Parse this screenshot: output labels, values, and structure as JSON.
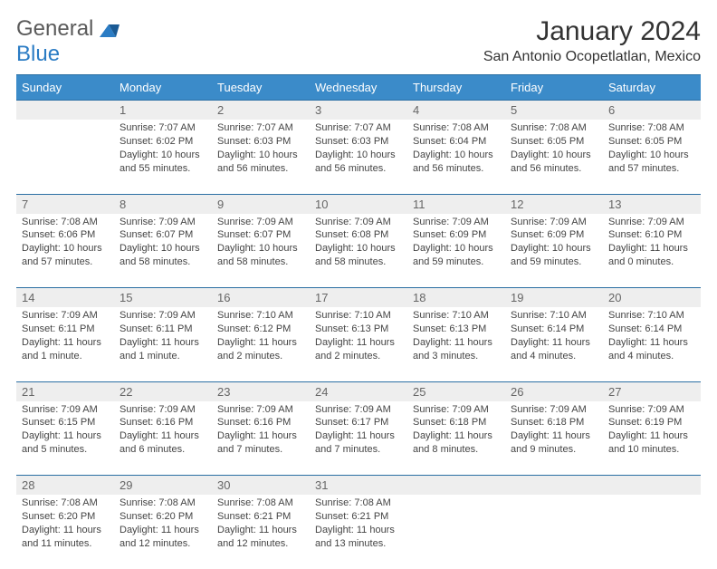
{
  "logo": {
    "word1": "General",
    "word2": "Blue"
  },
  "title": "January 2024",
  "location": "San Antonio Ocopetlatlan, Mexico",
  "colors": {
    "header_bg": "#3b8bc9",
    "header_border": "#2b6fa3",
    "daynum_bg": "#eeeeee",
    "daynum_text": "#666666",
    "body_text": "#444444",
    "logo_gray": "#5a5a5a",
    "logo_blue": "#2b7cc4"
  },
  "weekdays": [
    "Sunday",
    "Monday",
    "Tuesday",
    "Wednesday",
    "Thursday",
    "Friday",
    "Saturday"
  ],
  "weeks": [
    {
      "nums": [
        "",
        "1",
        "2",
        "3",
        "4",
        "5",
        "6"
      ],
      "cells": [
        "",
        "Sunrise: 7:07 AM\nSunset: 6:02 PM\nDaylight: 10 hours and 55 minutes.",
        "Sunrise: 7:07 AM\nSunset: 6:03 PM\nDaylight: 10 hours and 56 minutes.",
        "Sunrise: 7:07 AM\nSunset: 6:03 PM\nDaylight: 10 hours and 56 minutes.",
        "Sunrise: 7:08 AM\nSunset: 6:04 PM\nDaylight: 10 hours and 56 minutes.",
        "Sunrise: 7:08 AM\nSunset: 6:05 PM\nDaylight: 10 hours and 56 minutes.",
        "Sunrise: 7:08 AM\nSunset: 6:05 PM\nDaylight: 10 hours and 57 minutes."
      ]
    },
    {
      "nums": [
        "7",
        "8",
        "9",
        "10",
        "11",
        "12",
        "13"
      ],
      "cells": [
        "Sunrise: 7:08 AM\nSunset: 6:06 PM\nDaylight: 10 hours and 57 minutes.",
        "Sunrise: 7:09 AM\nSunset: 6:07 PM\nDaylight: 10 hours and 58 minutes.",
        "Sunrise: 7:09 AM\nSunset: 6:07 PM\nDaylight: 10 hours and 58 minutes.",
        "Sunrise: 7:09 AM\nSunset: 6:08 PM\nDaylight: 10 hours and 58 minutes.",
        "Sunrise: 7:09 AM\nSunset: 6:09 PM\nDaylight: 10 hours and 59 minutes.",
        "Sunrise: 7:09 AM\nSunset: 6:09 PM\nDaylight: 10 hours and 59 minutes.",
        "Sunrise: 7:09 AM\nSunset: 6:10 PM\nDaylight: 11 hours and 0 minutes."
      ]
    },
    {
      "nums": [
        "14",
        "15",
        "16",
        "17",
        "18",
        "19",
        "20"
      ],
      "cells": [
        "Sunrise: 7:09 AM\nSunset: 6:11 PM\nDaylight: 11 hours and 1 minute.",
        "Sunrise: 7:09 AM\nSunset: 6:11 PM\nDaylight: 11 hours and 1 minute.",
        "Sunrise: 7:10 AM\nSunset: 6:12 PM\nDaylight: 11 hours and 2 minutes.",
        "Sunrise: 7:10 AM\nSunset: 6:13 PM\nDaylight: 11 hours and 2 minutes.",
        "Sunrise: 7:10 AM\nSunset: 6:13 PM\nDaylight: 11 hours and 3 minutes.",
        "Sunrise: 7:10 AM\nSunset: 6:14 PM\nDaylight: 11 hours and 4 minutes.",
        "Sunrise: 7:10 AM\nSunset: 6:14 PM\nDaylight: 11 hours and 4 minutes."
      ]
    },
    {
      "nums": [
        "21",
        "22",
        "23",
        "24",
        "25",
        "26",
        "27"
      ],
      "cells": [
        "Sunrise: 7:09 AM\nSunset: 6:15 PM\nDaylight: 11 hours and 5 minutes.",
        "Sunrise: 7:09 AM\nSunset: 6:16 PM\nDaylight: 11 hours and 6 minutes.",
        "Sunrise: 7:09 AM\nSunset: 6:16 PM\nDaylight: 11 hours and 7 minutes.",
        "Sunrise: 7:09 AM\nSunset: 6:17 PM\nDaylight: 11 hours and 7 minutes.",
        "Sunrise: 7:09 AM\nSunset: 6:18 PM\nDaylight: 11 hours and 8 minutes.",
        "Sunrise: 7:09 AM\nSunset: 6:18 PM\nDaylight: 11 hours and 9 minutes.",
        "Sunrise: 7:09 AM\nSunset: 6:19 PM\nDaylight: 11 hours and 10 minutes."
      ]
    },
    {
      "nums": [
        "28",
        "29",
        "30",
        "31",
        "",
        "",
        ""
      ],
      "cells": [
        "Sunrise: 7:08 AM\nSunset: 6:20 PM\nDaylight: 11 hours and 11 minutes.",
        "Sunrise: 7:08 AM\nSunset: 6:20 PM\nDaylight: 11 hours and 12 minutes.",
        "Sunrise: 7:08 AM\nSunset: 6:21 PM\nDaylight: 11 hours and 12 minutes.",
        "Sunrise: 7:08 AM\nSunset: 6:21 PM\nDaylight: 11 hours and 13 minutes.",
        "",
        "",
        ""
      ]
    }
  ]
}
